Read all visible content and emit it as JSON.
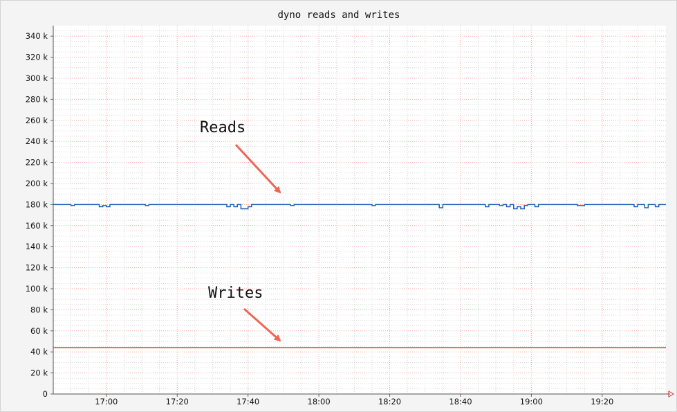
{
  "chart_data": {
    "type": "line",
    "title": "dyno reads and writes",
    "xlabel": "",
    "ylabel": "",
    "x_range_minutes": [
      "16:45",
      "19:38"
    ],
    "xticks": [
      "17:00",
      "17:20",
      "17:40",
      "18:00",
      "18:20",
      "18:40",
      "19:00",
      "19:20"
    ],
    "ylim": [
      0,
      350000
    ],
    "yticks": [
      {
        "value": 0,
        "label": "0"
      },
      {
        "value": 20000,
        "label": "20 k"
      },
      {
        "value": 40000,
        "label": "40 k"
      },
      {
        "value": 60000,
        "label": "60 k"
      },
      {
        "value": 80000,
        "label": "80 k"
      },
      {
        "value": 100000,
        "label": "100 k"
      },
      {
        "value": 120000,
        "label": "120 k"
      },
      {
        "value": 140000,
        "label": "140 k"
      },
      {
        "value": 160000,
        "label": "160 k"
      },
      {
        "value": 180000,
        "label": "180 k"
      },
      {
        "value": 200000,
        "label": "200 k"
      },
      {
        "value": 220000,
        "label": "220 k"
      },
      {
        "value": 240000,
        "label": "240 k"
      },
      {
        "value": 260000,
        "label": "260 k"
      },
      {
        "value": 280000,
        "label": "280 k"
      },
      {
        "value": 300000,
        "label": "300 k"
      },
      {
        "value": 320000,
        "label": "320 k"
      },
      {
        "value": 340000,
        "label": "340 k"
      }
    ],
    "grid": true,
    "series": [
      {
        "color": "#1f5fb4",
        "points": [
          [
            "16:45",
            180000
          ],
          [
            "16:50",
            180000
          ],
          [
            "16:50",
            179000
          ],
          [
            "16:51",
            179000
          ],
          [
            "16:51",
            180000
          ],
          [
            "16:58",
            180000
          ],
          [
            "16:58",
            178000
          ],
          [
            "16:59",
            178000
          ],
          [
            "16:59",
            179000
          ],
          [
            "17:00",
            179000
          ],
          [
            "17:00",
            178000
          ],
          [
            "17:01",
            178000
          ],
          [
            "17:01",
            180000
          ],
          [
            "17:11",
            180000
          ],
          [
            "17:11",
            179000
          ],
          [
            "17:12",
            179000
          ],
          [
            "17:12",
            180000
          ],
          [
            "17:34",
            180000
          ],
          [
            "17:34",
            178000
          ],
          [
            "17:35",
            178000
          ],
          [
            "17:35",
            180000
          ],
          [
            "17:36",
            180000
          ],
          [
            "17:36",
            178000
          ],
          [
            "17:37",
            178000
          ],
          [
            "17:37",
            180000
          ],
          [
            "17:38",
            180000
          ],
          [
            "17:38",
            176000
          ],
          [
            "17:40",
            176000
          ],
          [
            "17:40",
            178000
          ],
          [
            "17:41",
            178000
          ],
          [
            "17:41",
            180000
          ],
          [
            "17:52",
            180000
          ],
          [
            "17:52",
            179000
          ],
          [
            "17:53",
            179000
          ],
          [
            "17:53",
            180000
          ],
          [
            "18:15",
            180000
          ],
          [
            "18:15",
            179000
          ],
          [
            "18:16",
            179000
          ],
          [
            "18:16",
            180000
          ],
          [
            "18:34",
            180000
          ],
          [
            "18:34",
            177000
          ],
          [
            "18:35",
            177000
          ],
          [
            "18:35",
            180000
          ],
          [
            "18:47",
            180000
          ],
          [
            "18:47",
            178000
          ],
          [
            "18:48",
            178000
          ],
          [
            "18:48",
            180000
          ],
          [
            "18:51",
            180000
          ],
          [
            "18:51",
            179000
          ],
          [
            "18:52",
            179000
          ],
          [
            "18:52",
            180000
          ],
          [
            "18:53",
            180000
          ],
          [
            "18:53",
            178000
          ],
          [
            "18:54",
            178000
          ],
          [
            "18:54",
            180000
          ],
          [
            "18:55",
            180000
          ],
          [
            "18:55",
            176000
          ],
          [
            "18:56",
            176000
          ],
          [
            "18:56",
            178000
          ],
          [
            "18:57",
            178000
          ],
          [
            "18:57",
            176000
          ],
          [
            "18:58",
            176000
          ],
          [
            "18:58",
            179000
          ],
          [
            "18:59",
            179000
          ],
          [
            "18:59",
            180000
          ],
          [
            "19:01",
            180000
          ],
          [
            "19:01",
            178000
          ],
          [
            "19:02",
            178000
          ],
          [
            "19:02",
            180000
          ],
          [
            "19:13",
            180000
          ],
          [
            "19:13",
            179000
          ],
          [
            "19:15",
            179000
          ],
          [
            "19:15",
            180000
          ],
          [
            "19:29",
            180000
          ],
          [
            "19:29",
            178000
          ],
          [
            "19:30",
            178000
          ],
          [
            "19:30",
            180000
          ],
          [
            "19:32",
            180000
          ],
          [
            "19:32",
            177000
          ],
          [
            "19:33",
            177000
          ],
          [
            "19:33",
            180000
          ],
          [
            "19:35",
            180000
          ],
          [
            "19:35",
            178000
          ],
          [
            "19:36",
            178000
          ],
          [
            "19:36",
            180000
          ],
          [
            "19:38",
            180000
          ]
        ]
      },
      {
        "color": "#b5561a",
        "points": [
          [
            "16:45",
            44000
          ],
          [
            "19:38",
            44000
          ]
        ]
      }
    ],
    "annotations": [
      {
        "text": "Reads",
        "arrow_color": "#ee6655"
      },
      {
        "text": "Writes",
        "arrow_color": "#ee6655"
      }
    ]
  }
}
